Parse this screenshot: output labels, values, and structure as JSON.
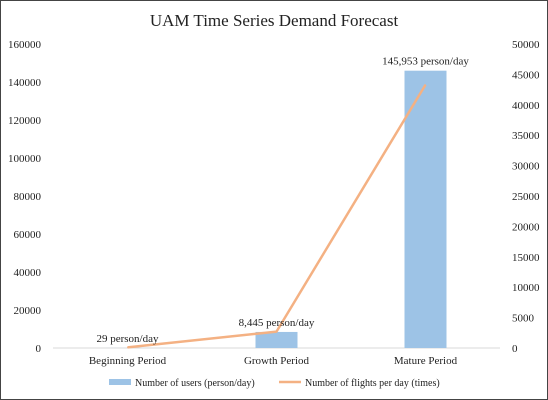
{
  "chart_data": {
    "type": "bar",
    "title": "UAM Time Series Demand Forecast",
    "categories": [
      "Beginning Period",
      "Growth Period",
      "Mature Period"
    ],
    "series": [
      {
        "name": "Number of users (person/day)",
        "type": "bar",
        "axis": "left",
        "values": [
          29,
          8445,
          145953
        ],
        "data_labels": [
          "29 person/day",
          "8,445 person/day",
          "145,953 person/day"
        ],
        "color": "#9dc3e6"
      },
      {
        "name": "Number of flights per day (times)",
        "type": "line",
        "axis": "right",
        "values": [
          100,
          2700,
          43300
        ],
        "color": "#f4b183"
      }
    ],
    "y_left": {
      "ylim": [
        0,
        160000
      ],
      "ticks": [
        "0",
        "20000",
        "40000",
        "60000",
        "80000",
        "100000",
        "120000",
        "140000",
        "160000"
      ]
    },
    "y_right": {
      "ylim": [
        0,
        50000
      ],
      "ticks": [
        "0",
        "5000",
        "10000",
        "15000",
        "20000",
        "25000",
        "30000",
        "35000",
        "40000",
        "45000",
        "50000"
      ]
    },
    "grid": false,
    "legend_position": "bottom"
  }
}
